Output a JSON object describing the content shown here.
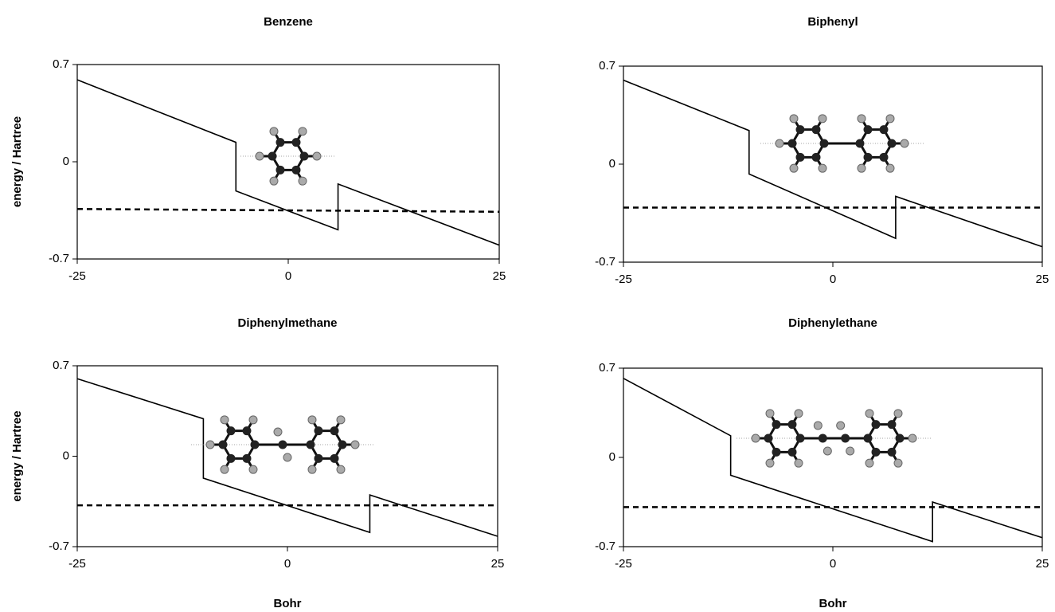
{
  "chart_data": [
    {
      "type": "line",
      "title": "Benzene",
      "ylabel": "energy / Hartree",
      "xlim": [
        -25,
        25
      ],
      "ylim": [
        -0.7,
        0.7
      ],
      "xticks": [
        -25,
        0,
        25
      ],
      "yticks": [
        -0.7,
        0,
        0.7
      ],
      "series": [
        {
          "color": "#000000",
          "style": "solid",
          "x": [
            -25,
            -6.2,
            -6.2,
            5.9,
            5.9,
            25
          ],
          "values": [
            0.59,
            0.14,
            -0.21,
            -0.49,
            -0.16,
            -0.6
          ]
        },
        {
          "color": "#000000",
          "style": "dashed",
          "x": [
            -25,
            25
          ],
          "values": [
            -0.34,
            -0.36
          ]
        }
      ]
    },
    {
      "type": "line",
      "title": "Biphenyl",
      "xlim": [
        -25,
        25
      ],
      "ylim": [
        -0.7,
        0.7
      ],
      "xticks": [
        -25,
        0,
        25
      ],
      "yticks": [
        -0.7,
        0,
        0.7
      ],
      "series": [
        {
          "color": "#000000",
          "style": "solid",
          "x": [
            -25,
            -10,
            -10,
            7.5,
            7.5,
            25
          ],
          "values": [
            0.6,
            0.24,
            -0.07,
            -0.53,
            -0.23,
            -0.59
          ]
        },
        {
          "color": "#000000",
          "style": "dashed",
          "x": [
            -25,
            25
          ],
          "values": [
            -0.31,
            -0.31
          ]
        }
      ]
    },
    {
      "type": "line",
      "title": "Diphenylmethane",
      "ylabel": "energy / Hartree",
      "xlabel": "Bohr",
      "xlim": [
        -25,
        25
      ],
      "ylim": [
        -0.7,
        0.7
      ],
      "xticks": [
        -25,
        0,
        25
      ],
      "yticks": [
        -0.7,
        0,
        0.7
      ],
      "series": [
        {
          "color": "#000000",
          "style": "solid",
          "x": [
            -25,
            -10,
            -10,
            9.8,
            9.8,
            25
          ],
          "values": [
            0.6,
            0.29,
            -0.17,
            -0.59,
            -0.3,
            -0.62
          ]
        },
        {
          "color": "#000000",
          "style": "dashed",
          "x": [
            -25,
            25
          ],
          "values": [
            -0.38,
            -0.38
          ]
        }
      ]
    },
    {
      "type": "line",
      "title": "Diphenylethane",
      "xlabel": "Bohr",
      "xlim": [
        -25,
        25
      ],
      "ylim": [
        -0.7,
        0.7
      ],
      "xticks": [
        -25,
        0,
        25
      ],
      "yticks": [
        -0.7,
        0,
        0.7
      ],
      "series": [
        {
          "color": "#000000",
          "style": "solid",
          "x": [
            -25,
            -12.2,
            -12.2,
            11.9,
            11.9,
            25
          ],
          "values": [
            0.62,
            0.17,
            -0.14,
            -0.66,
            -0.35,
            -0.63
          ]
        },
        {
          "color": "#000000",
          "style": "dashed",
          "x": [
            -25,
            25
          ],
          "values": [
            -0.39,
            -0.39
          ]
        }
      ]
    }
  ]
}
